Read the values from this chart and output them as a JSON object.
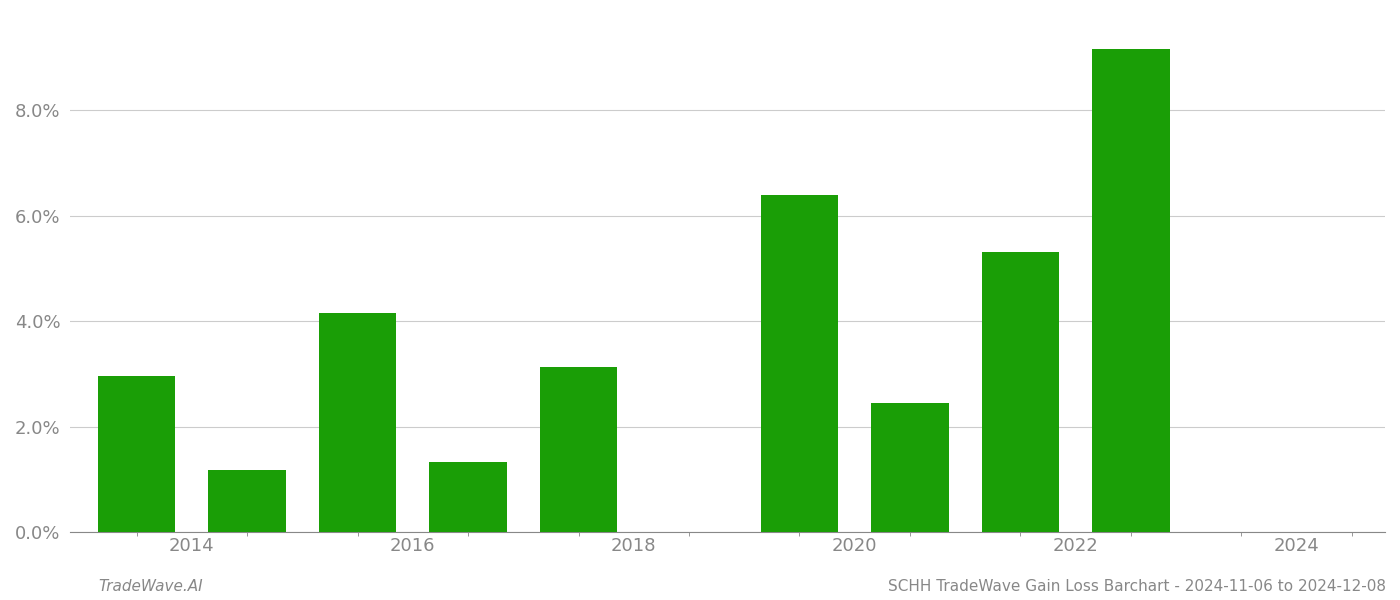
{
  "years": [
    2013,
    2014,
    2015,
    2016,
    2017,
    2018,
    2019,
    2020,
    2021,
    2022,
    2023
  ],
  "values": [
    0.0295,
    0.0118,
    0.0415,
    0.0132,
    0.0312,
    0.0,
    0.0638,
    0.0245,
    0.053,
    0.0915,
    0.0
  ],
  "bar_color": "#1a9e06",
  "background_color": "#ffffff",
  "ylim": [
    0,
    0.098
  ],
  "yticks": [
    0.0,
    0.02,
    0.04,
    0.06,
    0.08
  ],
  "tick_fontsize": 13,
  "tick_color": "#888888",
  "grid_color": "#cccccc",
  "footer_left": "TradeWave.AI",
  "footer_right": "SCHH TradeWave Gain Loss Barchart - 2024-11-06 to 2024-12-08",
  "footer_fontsize": 11,
  "bar_width": 0.7
}
